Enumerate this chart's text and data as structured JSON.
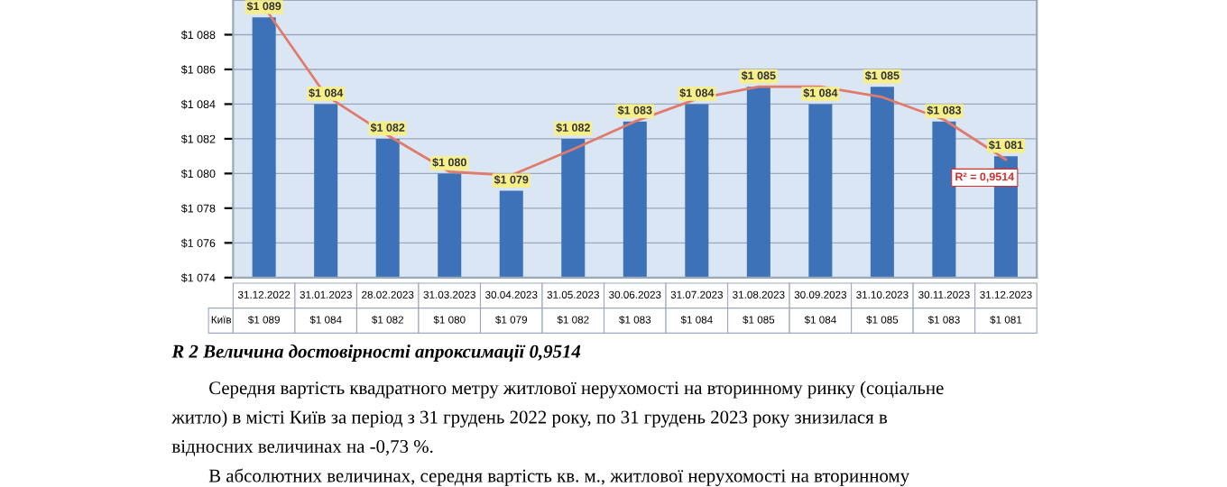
{
  "chart_data": {
    "type": "bar",
    "categories": [
      "31.12.2022",
      "31.01.2023",
      "28.02.2023",
      "31.03.2023",
      "30.04.2023",
      "31.05.2023",
      "30.06.2023",
      "31.07.2023",
      "31.08.2023",
      "30.09.2023",
      "31.10.2023",
      "30.11.2023",
      "31.12.2023"
    ],
    "series": [
      {
        "name": "Київ",
        "color": "#3d72b8",
        "values": [
          1089,
          1084,
          1082,
          1080,
          1079,
          1082,
          1083,
          1084,
          1085,
          1084,
          1085,
          1083,
          1081
        ],
        "value_labels": [
          "$1 089",
          "$1 084",
          "$1 082",
          "$1 080",
          "$1 079",
          "$1 082",
          "$1 083",
          "$1 084",
          "$1 085",
          "$1 084",
          "$1 085",
          "$1 083",
          "$1 081"
        ]
      },
      {
        "type": "line",
        "color": "#e07a6a",
        "x": [
          "31.12.2022",
          "31.01.2023",
          "28.02.2023",
          "31.03.2023",
          "30.04.2023",
          "31.05.2023",
          "30.06.2023",
          "31.07.2023",
          "31.08.2023",
          "30.09.2023",
          "31.10.2023",
          "30.11.2023",
          "31.12.2023"
        ],
        "values": [
          1089.6,
          1084.5,
          1082.2,
          1080.1,
          1079.9,
          1081.4,
          1083.0,
          1084.3,
          1085.0,
          1085.0,
          1084.4,
          1083.1,
          1080.8
        ]
      }
    ],
    "ylim": [
      1074,
      1090
    ],
    "yticks": [
      {
        "value": 1074,
        "label": "$1 074"
      },
      {
        "value": 1076,
        "label": "$1 076"
      },
      {
        "value": 1078,
        "label": "$1 078"
      },
      {
        "value": 1080,
        "label": "$1 080"
      },
      {
        "value": 1082,
        "label": "$1 082"
      },
      {
        "value": 1084,
        "label": "$1 084"
      },
      {
        "value": 1086,
        "label": "$1 086"
      },
      {
        "value": 1088,
        "label": "$1 088"
      }
    ],
    "grid": "y",
    "legend": false,
    "annotations": [
      "R² = 0,9514",
      "R 2 Величина достовірності апроксимації 0,9514",
      "Середня вартість квадратного метру житлової нерухомості на вторинному ринку (соціальне",
      "житло) в місті Київ за період з 31 грудень 2022 року, по 31 грудень 2023 року знизилася в",
      "відносних величинах на -0,73 %.",
      "В абсолютних величинах, середня вартість кв. м., житлової нерухомості на вторинному"
    ]
  }
}
